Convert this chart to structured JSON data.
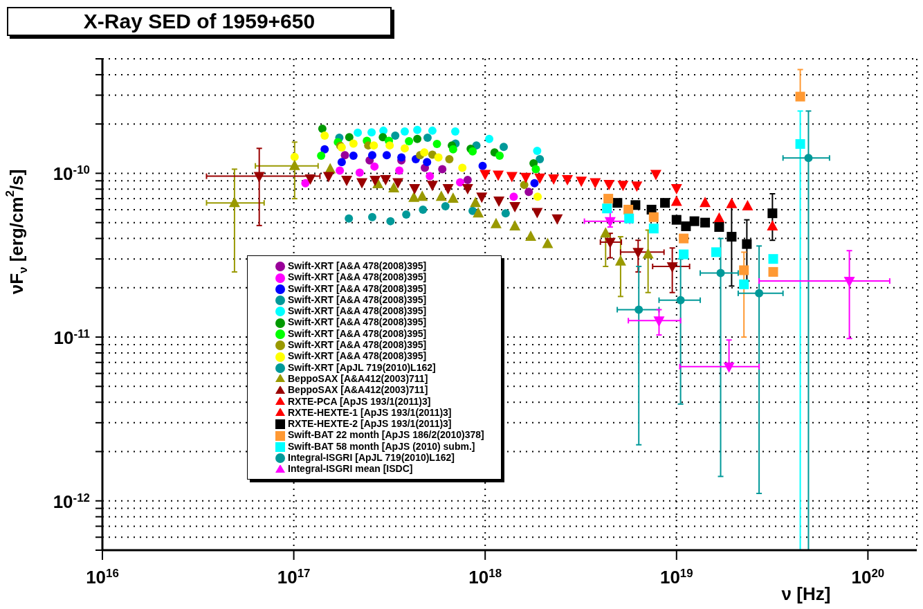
{
  "chart_data": {
    "type": "scatter",
    "title": "X-Ray SED of 1959+650",
    "xlabel": "ν [Hz]",
    "ylabel": "νF$_{ν}$ [erg/cm$^{2}$/s]",
    "log": "xy",
    "grid": true,
    "legend": "bottom left",
    "xlim": [
      1e+16,
      1.8e+20
    ],
    "xticks": [
      {
        "value": 1e+16,
        "label": "10$^{16}$"
      },
      {
        "value": 1e+17,
        "label": "10$^{17}$"
      },
      {
        "value": 1e+18,
        "label": "10$^{18}$"
      },
      {
        "value": 1e+19,
        "label": "10$^{19}$"
      },
      {
        "value": 1e+20,
        "label": "10$^{20}$"
      }
    ],
    "ylim": [
      5e-13,
      5e-10
    ],
    "yticks": [
      {
        "value": 5e-13,
        "label": null
      },
      {
        "value": 6e-13,
        "label": null
      },
      {
        "value": 7e-13,
        "label": null
      },
      {
        "value": 8e-13,
        "label": null
      },
      {
        "value": 9e-13,
        "label": null
      },
      {
        "value": 1e-12,
        "label": "10$^{-12}$"
      },
      {
        "value": 2e-12,
        "label": null
      },
      {
        "value": 3e-12,
        "label": null
      },
      {
        "value": 4e-12,
        "label": null
      },
      {
        "value": 5e-12,
        "label": null
      },
      {
        "value": 6e-12,
        "label": null
      },
      {
        "value": 7e-12,
        "label": null
      },
      {
        "value": 8e-12,
        "label": null
      },
      {
        "value": 9e-12,
        "label": null
      },
      {
        "value": 1e-11,
        "label": "10$^{-11}$"
      },
      {
        "value": 2e-11,
        "label": null
      },
      {
        "value": 3e-11,
        "label": null
      },
      {
        "value": 4e-11,
        "label": null
      },
      {
        "value": 5e-11,
        "label": null
      },
      {
        "value": 6e-11,
        "label": null
      },
      {
        "value": 7e-11,
        "label": null
      },
      {
        "value": 8e-11,
        "label": null
      },
      {
        "value": 9e-11,
        "label": null
      },
      {
        "value": 1e-10,
        "label": "10$^{-10}$"
      },
      {
        "value": 2e-10,
        "label": null
      },
      {
        "value": 3e-10,
        "label": null
      },
      {
        "value": 4e-10,
        "label": null
      },
      {
        "value": 5e-10,
        "label": null
      }
    ],
    "series": [
      {
        "name": "Swift-XRT [A&A 478(2008)395]",
        "color": "#990099",
        "marker": "circle",
        "x": [
          1.85e+17,
          2.49e+17,
          3.65e+17,
          4.84e+17,
          5.97e+17,
          8.1e+17,
          1.69e+18
        ],
        "values": [
          1.29e-10,
          1.2e-10,
          1.2e-10,
          1.08e-10,
          1.06e-10,
          9.1e-11,
          7.7e-11
        ]
      },
      {
        "name": "Swift-XRT [A&A 478(2008)395]",
        "color": "#ff00ff",
        "marker": "circle",
        "x": [
          1.15e+17,
          1.74e+17,
          2.21e+17,
          2.64e+17,
          3.56e+17,
          5.14e+17,
          7.4e+17,
          1.41e+18
        ],
        "values": [
          8.7e-11,
          1.04e-10,
          1.01e-10,
          1.1e-10,
          1.04e-10,
          9.6e-11,
          8.8e-11,
          7.2e-11
        ]
      },
      {
        "name": "Swift-XRT [A&A 478(2008)395]",
        "color": "#0000ff",
        "marker": "circle",
        "x": [
          1.45e+17,
          1.78e+17,
          2.05e+17,
          2.57e+17,
          3.06e+17,
          3.65e+17,
          4.34e+17,
          4.97e+17,
          9.7e+17,
          1.81e+18
        ],
        "values": [
          1.4e-10,
          1.17e-10,
          1.28e-10,
          1.29e-10,
          1.29e-10,
          1.25e-10,
          1.22e-10,
          1.17e-10,
          1.11e-10,
          8.7e-11
        ]
      },
      {
        "name": "Swift-XRT [A&A 478(2008)395]",
        "color": "#009999",
        "marker": "circle",
        "x": [
          1.73e+17,
          3.39e+17,
          5e+17,
          7e+17,
          9e+17,
          1.25e+18,
          1.93e+18
        ],
        "values": [
          1.65e-10,
          1.7e-10,
          1.65e-10,
          1.52e-10,
          1.48e-10,
          1.45e-10,
          1.22e-10
        ]
      },
      {
        "name": "Swift-XRT [A&A 478(2008)395]",
        "color": "#00ffff",
        "marker": "circle",
        "x": [
          2.16e+17,
          2.55e+17,
          2.94e+17,
          3.8e+17,
          4.42e+17,
          5.3e+17,
          6.98e+17,
          1.05e+18,
          1.87e+18
        ],
        "values": [
          1.77e-10,
          1.78e-10,
          1.82e-10,
          1.8e-10,
          1.84e-10,
          1.82e-10,
          1.8e-10,
          1.62e-10,
          1.37e-10
        ]
      },
      {
        "name": "Swift-XRT [A&A 478(2008)395]",
        "color": "#009900",
        "marker": "circle",
        "x": [
          1.41e+17,
          1.95e+17,
          2.92e+17,
          4.42e+17,
          6.7e+17,
          8.4e+17,
          1.12e+18,
          1.79e+18
        ],
        "values": [
          1.87e-10,
          1.66e-10,
          1.66e-10,
          1.62e-10,
          1.48e-10,
          1.41e-10,
          1.34e-10,
          1.15e-10
        ]
      },
      {
        "name": "Swift-XRT [A&A 478(2008)395]",
        "color": "#00ff00",
        "marker": "circle",
        "x": [
          1.39e+17,
          1.7e+17,
          2.41e+17,
          3.14e+17,
          4e+17,
          5.6e+17,
          6.8e+17,
          8.6e+17,
          1.19e+18,
          1.84e+18
        ],
        "values": [
          1.28e-10,
          1.55e-10,
          1.58e-10,
          1.58e-10,
          1.57e-10,
          1.51e-10,
          1.4e-10,
          1.36e-10,
          1.28e-10,
          1.06e-10
        ]
      },
      {
        "name": "Swift-XRT [A&A 478(2008)395]",
        "color": "#999900",
        "marker": "circle",
        "x": [
          1.75e+17,
          2.45e+17,
          4.57e+17,
          5.3e+17,
          6.5e+17,
          1.6e+18
        ],
        "values": [
          1.47e-10,
          1.48e-10,
          1.29e-10,
          1.3e-10,
          1.22e-10,
          8.5e-11
        ]
      },
      {
        "name": "Swift-XRT [A&A 478(2008)395]",
        "color": "#ffff00",
        "marker": "circle",
        "x": [
          1.01e+17,
          1.45e+17,
          1.78e+17,
          2.05e+17,
          2.62e+17,
          3.17e+17,
          3.8e+17,
          4.81e+17,
          5.7e+17,
          7.6e+17,
          1.88e+18
        ],
        "values": [
          1.26e-10,
          1.7e-10,
          1.44e-10,
          1.52e-10,
          1.48e-10,
          1.48e-10,
          1.42e-10,
          1.34e-10,
          1.25e-10,
          1.08e-10,
          7.2e-11
        ]
      },
      {
        "name": "Swift-XRT [ApJL 719(2010)L162]",
        "color": "#009999",
        "marker": "circle",
        "x": [
          1.94e+17,
          2.57e+17,
          3.2e+17,
          3.87e+17,
          4.73e+17,
          6.2e+17,
          8.6e+17,
          1.28e+18
        ],
        "values": [
          5.3e-11,
          5.4e-11,
          5.1e-11,
          5.6e-11,
          6e-11,
          6.3e-11,
          5.9e-11,
          5.7e-11
        ]
      },
      {
        "name": "BeppoSAX [A&A412(2003)711]",
        "color": "#999900",
        "marker": "triangle",
        "x": [
          4.9e+16,
          1.01e+17,
          1.55e+17,
          2.75e+17,
          3.33e+17,
          4.24e+17,
          4.69e+17,
          5.9e+17,
          6.8e+17,
          8.9e+17,
          9.2e+17,
          1.14e+18,
          1.43e+18,
          1.73e+18,
          2.12e+18,
          4.26e+18,
          5.1e+18,
          7.1e+18
        ],
        "values": [
          6.6e-11,
          1.11e-10,
          1.06e-10,
          8.6e-11,
          8.1e-11,
          7.1e-11,
          7.2e-11,
          7.2e-11,
          7e-11,
          6.6e-11,
          5.7e-11,
          4.9e-11,
          4.75e-11,
          4.1e-11,
          3.7e-11,
          4.3e-11,
          2.9e-11,
          3.2e-11
        ],
        "errors": [
          [
            2.5e-11,
            1.06e-10
          ],
          [
            7e-11,
            1.55e-10
          ],
          null,
          null,
          null,
          null,
          null,
          null,
          null,
          null,
          null,
          null,
          null,
          null,
          null,
          [
            2.7e-11,
            4.3e-11
          ],
          [
            1.77e-11,
            4.1e-11
          ],
          [
            1.87e-11,
            4.5e-11
          ]
        ],
        "xerrors": [
          [
            3.5e+16,
            7e+16
          ],
          [
            6.3e+16,
            1.34e+17
          ],
          null,
          null,
          null,
          null,
          null,
          null,
          null,
          null,
          null,
          null,
          null,
          null,
          null,
          null,
          null,
          null
        ]
      },
      {
        "name": "BeppoSAX [A&A412(2003)711]",
        "color": "#990000",
        "marker": "triangle-down",
        "x": [
          6.6e+16,
          1.22e+17,
          1.52e+17,
          1.89e+17,
          2.27e+17,
          2.66e+17,
          3.02e+17,
          3.5e+17,
          4.28e+17,
          5.3e+17,
          6.4e+17,
          8.1e+17,
          9.6e+17,
          1.18e+18,
          1.43e+18,
          1.87e+18,
          2.38e+18,
          4.5e+18,
          6.3e+18,
          9.5e+18
        ],
        "values": [
          9.6e-11,
          9.3e-11,
          9.6e-11,
          9.1e-11,
          8.8e-11,
          9.1e-11,
          9.2e-11,
          8.8e-11,
          8.1e-11,
          8.5e-11,
          8.1e-11,
          8.1e-11,
          7.2e-11,
          6.8e-11,
          6.3e-11,
          5.8e-11,
          5.3e-11,
          3.8e-11,
          3.3e-11,
          2.7e-11
        ],
        "errors": [
          [
            4.8e-11,
            1.42e-10
          ],
          null,
          null,
          null,
          null,
          null,
          null,
          null,
          null,
          null,
          null,
          null,
          null,
          null,
          null,
          null,
          null,
          [
            3.05e-11,
            4.3e-11
          ],
          [
            2.5e-11,
            3.9e-11
          ],
          [
            1.87e-11,
            3.5e-11
          ]
        ],
        "xerrors": [
          [
            3.5e+16,
            1.37e+17
          ],
          null,
          null,
          null,
          null,
          null,
          null,
          null,
          null,
          null,
          null,
          null,
          null,
          null,
          null,
          null,
          null,
          [
            4e+18,
            5.15e+18
          ],
          [
            5.1e+18,
            8.6e+18
          ],
          [
            7.5e+18,
            1.17e+19
          ]
        ]
      },
      {
        "name": "RXTE-PCA [ApJS 193/1(2011)3]",
        "color": "#ff0000",
        "marker": "triangle-down",
        "x": [
          1e+18,
          1.17e+18,
          1.38e+18,
          1.63e+18,
          1.93e+18,
          2.28e+18,
          2.69e+18,
          3.18e+18,
          3.76e+18,
          4.44e+18,
          5.25e+18,
          6.2e+18,
          7.8e+18,
          1e+19
        ],
        "values": [
          9.9e-11,
          9.8e-11,
          9.6e-11,
          9.5e-11,
          9.4e-11,
          9.3e-11,
          9.2e-11,
          9e-11,
          8.8e-11,
          8.6e-11,
          8.5e-11,
          8.4e-11,
          9.9e-11,
          8.1e-11
        ]
      },
      {
        "name": "RXTE-HEXTE-1 [ApJS 193/1(2011)3]",
        "color": "#ff0000",
        "marker": "triangle",
        "x": [
          1e+19,
          1.41e+19,
          1.67e+19,
          1.94e+19,
          2.35e+19,
          3.17e+19
        ],
        "values": [
          6.7e-11,
          6.6e-11,
          5.3e-11,
          6.5e-11,
          6.3e-11,
          4.75e-11
        ]
      },
      {
        "name": "RXTE-HEXTE-2 [ApJS 193/1(2011)3]",
        "color": "#000000",
        "marker": "square",
        "x": [
          4.91e+18,
          6.1e+18,
          7.4e+18,
          8.7e+18,
          1e+19,
          1.12e+19,
          1.24e+19,
          1.41e+19,
          1.67e+19,
          1.94e+19,
          2.33e+19,
          3.17e+19
        ],
        "values": [
          6.6e-11,
          6.4e-11,
          6e-11,
          6.6e-11,
          5.2e-11,
          4.75e-11,
          5.1e-11,
          5e-11,
          4.7e-11,
          4.1e-11,
          3.7e-11,
          5.7e-11
        ],
        "errors": [
          null,
          null,
          null,
          null,
          null,
          null,
          null,
          null,
          null,
          [
            2.05e-11,
            6.3e-11
          ],
          [
            2.2e-11,
            5.2e-11
          ],
          [
            3.9e-11,
            7.5e-11
          ]
        ]
      },
      {
        "name": "Swift-BAT 22 month [ApJS 186/2(2010)378]",
        "color": "#ff9933",
        "marker": "square",
        "x": [
          4.4e+18,
          5.6e+18,
          7.6e+18,
          1.09e+19,
          2.25e+19,
          3.2e+19,
          4.43e+19
        ],
        "values": [
          7e-11,
          6e-11,
          5.4e-11,
          4e-11,
          2.56e-11,
          2.5e-11,
          2.94e-10
        ],
        "errors": [
          null,
          null,
          null,
          null,
          [
            1e-11,
            3.3e-11
          ],
          null,
          [
            2.94e-10,
            4.3e-10
          ]
        ]
      },
      {
        "name": "Swift-BAT 58 month [ApJS (2010) subm.]",
        "color": "#00ffff",
        "marker": "square",
        "x": [
          4.33e+18,
          5.65e+18,
          7.6e+18,
          1.09e+19,
          1.61e+19,
          2.25e+19,
          3.2e+19,
          4.43e+19
        ],
        "values": [
          6.1e-11,
          5.3e-11,
          4.6e-11,
          3.2e-11,
          3.3e-11,
          2.1e-11,
          3e-11,
          1.51e-10
        ],
        "errors": [
          null,
          null,
          null,
          null,
          null,
          null,
          null,
          [
            5e-13,
            2.4e-10
          ]
        ]
      },
      {
        "name": "Integral-ISGRI [ApJL 719(2010)L162]",
        "color": "#009999",
        "marker": "circle",
        "x": [
          6.35e+18,
          1.05e+19,
          1.7e+19,
          2.7e+19,
          4.89e+19
        ],
        "values": [
          1.47e-11,
          1.68e-11,
          2.46e-11,
          1.85e-11,
          1.24e-10
        ],
        "errors": [
          [
            2.2e-12,
            2.7e-11
          ],
          [
            3.9e-12,
            3e-11
          ],
          [
            1.41e-12,
            4e-11
          ],
          [
            1.11e-12,
            3.6e-11
          ],
          [
            5e-13,
            2.4e-10
          ]
        ],
        "xerrors": [
          [
            4.9e+18,
            8.1e+18
          ],
          [
            8.1e+18,
            1.33e+19
          ],
          [
            1.33e+19,
            2.1e+19
          ],
          [
            2.1e+19,
            3.6e+19
          ],
          [
            3.6e+19,
            6.3e+19
          ]
        ]
      },
      {
        "name": "Integral-ISGRI mean [ISDC]",
        "color": "#ff00ff",
        "marker": "triangle-down",
        "x": [
          4.5e+18,
          8.1e+18,
          1.88e+19,
          8e+19
        ],
        "values": [
          5.1e-11,
          1.26e-11,
          6.6e-12,
          2.2e-11
        ],
        "errors": [
          [
            4.7e-11,
            5.8e-11
          ],
          [
            1.03e-11,
            1.47e-11
          ],
          [
            6.6e-12,
            9.6e-12
          ],
          [
            9.8e-12,
            3.37e-11
          ]
        ],
        "xerrors": [
          [
            3.3e+18,
            5.7e+18
          ],
          [
            5.6e+18,
            1.05e+19
          ],
          [
            1.04e+19,
            2.7e+19
          ],
          [
            2.7e+19,
            1.3e+20
          ]
        ]
      }
    ]
  }
}
